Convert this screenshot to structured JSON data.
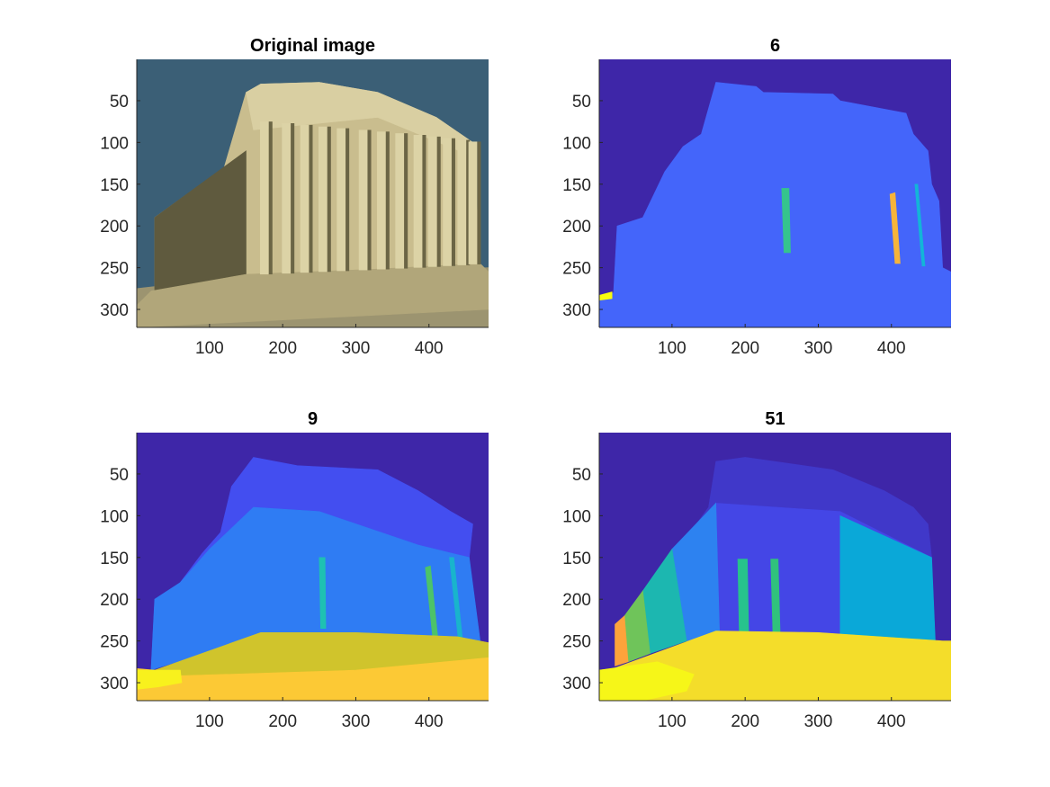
{
  "figure": {
    "background": "#ffffff",
    "axis_color": "#262626"
  },
  "chart_data": [
    {
      "type": "heatmap",
      "content": "photograph of the Parthenon",
      "title": "Original image",
      "xlabel": "",
      "ylabel": "",
      "xlim": [
        0.5,
        481.5
      ],
      "ylim": [
        0.5,
        321.5
      ],
      "y_reversed": true,
      "x_ticks": [
        100,
        200,
        300,
        400
      ],
      "y_ticks": [
        50,
        100,
        150,
        200,
        250,
        300
      ],
      "colors": {
        "sky": "#3b5f76",
        "stone": "#c9bd8e",
        "shadow": "#5f5a3e",
        "ground": "#9c9470"
      }
    },
    {
      "type": "heatmap",
      "content": "label map with 6 segments",
      "title": "6",
      "xlabel": "",
      "ylabel": "",
      "xlim": [
        0.5,
        481.5
      ],
      "ylim": [
        0.5,
        321.5
      ],
      "y_reversed": true,
      "x_ticks": [
        100,
        200,
        300,
        400
      ],
      "y_ticks": [
        50,
        100,
        150,
        200,
        250,
        300
      ],
      "colormap": "parula",
      "colors": {
        "background": "#3e26a8",
        "main": "#4465fa",
        "column_a": "#35c48d",
        "column_b": "#f6b43a",
        "column_c": "#13b5d8",
        "corner": "#f9fb0e"
      }
    },
    {
      "type": "heatmap",
      "content": "label map with 9 segments",
      "title": "9",
      "xlabel": "",
      "ylabel": "",
      "xlim": [
        0.5,
        481.5
      ],
      "ylim": [
        0.5,
        321.5
      ],
      "y_reversed": true,
      "x_ticks": [
        100,
        200,
        300,
        400
      ],
      "y_ticks": [
        50,
        100,
        150,
        200,
        250,
        300
      ],
      "colormap": "parula",
      "colors": {
        "background": "#3e26a8",
        "roof": "#434ef0",
        "body": "#2f7cf3",
        "column_a": "#1ec1b2",
        "column_b": "#4cc36a",
        "column_c": "#19b4cc",
        "base": "#d0c42c",
        "ground": "#fcc935",
        "ground_light": "#f8f11d"
      }
    },
    {
      "type": "heatmap",
      "content": "label map with 51 segments",
      "title": "51",
      "xlabel": "",
      "ylabel": "",
      "xlim": [
        0.5,
        481.5
      ],
      "ylim": [
        0.5,
        321.5
      ],
      "y_reversed": true,
      "x_ticks": [
        100,
        200,
        300,
        400
      ],
      "y_ticks": [
        50,
        100,
        150,
        200,
        250,
        300
      ],
      "colormap": "parula",
      "colors": {
        "background": "#3e26a8",
        "roof": "#4038c9",
        "body_dark": "#4446e6",
        "body_blue": "#2d82f0",
        "body_cyan": "#0aa8d8",
        "body_teal": "#1cb7b0",
        "body_green": "#6fc45a",
        "body_orange": "#fda33b",
        "column_a": "#27c38c",
        "column_b": "#30c27c",
        "ground": "#f4dd2a",
        "ground_light": "#f6f618"
      }
    }
  ]
}
